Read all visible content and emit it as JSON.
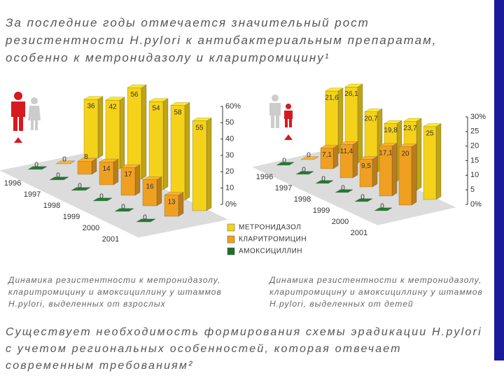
{
  "header": "За последние годы отмечается значительный рост резистентности H.pylori к антибактериальным препаратам, особенно к метронидазолу и кларитромицину¹",
  "chart_data": [
    {
      "type": "bar3d",
      "caption": "Динамика резистентности к метронидазолу, кларитромицину и амоксициллину у штаммов H.pylori, выделенных от взрослых",
      "categories": [
        "1996",
        "1997",
        "1998",
        "1999",
        "2000",
        "2001"
      ],
      "series": [
        {
          "name": "МЕТРОНИДАЗОЛ",
          "color": "#f5d21a",
          "values": [
            36,
            42,
            56,
            54,
            58,
            55
          ]
        },
        {
          "name": "КЛАРИТРОМИЦИН",
          "color": "#f0a020",
          "values": [
            0,
            8,
            14,
            17,
            16,
            13
          ]
        },
        {
          "name": "АМОКСИЦИЛЛИН",
          "color": "#1e6e2a",
          "values": [
            0,
            0,
            0,
            0,
            0,
            0
          ]
        }
      ],
      "ylim": [
        0,
        60
      ],
      "yticks": [
        {
          "value": 0,
          "label": "0%"
        },
        10,
        20,
        30,
        40,
        50,
        {
          "value": 60,
          "label": "60%"
        }
      ]
    },
    {
      "type": "bar3d",
      "caption": "Динамика резистентности к метронидазолу, кларитромицину и амоксициллину у штаммов H.pylori, выделенных от детей",
      "categories": [
        "1996",
        "1997",
        "1998",
        "1999",
        "2000",
        "2001"
      ],
      "series": [
        {
          "color": "#f5d21a",
          "values": [
            21.6,
            26.1,
            20.7,
            19.8,
            23.7,
            25
          ],
          "value_labels": [
            "21,6",
            "26,1",
            "20,7",
            "19,8",
            "23,7",
            "25"
          ]
        },
        {
          "color": "#f0a020",
          "values": [
            0,
            7.1,
            11.4,
            9.5,
            17.1,
            20
          ],
          "value_labels": [
            "0",
            "7,1",
            "11,4",
            "9,5",
            "17,1",
            "20"
          ]
        },
        {
          "color": "#1e6e2a",
          "values": [
            0,
            0,
            0,
            0,
            0,
            0
          ]
        }
      ],
      "ylim": [
        0,
        30
      ],
      "yticks": [
        {
          "value": 0,
          "label": "0%"
        },
        5,
        10,
        15,
        20,
        25,
        {
          "value": 30,
          "label": "30%"
        }
      ]
    }
  ],
  "footer": "Существует необходимость формирования схемы эрадикации H.pylori с учетом региональных особенностей, которая отвечает современным требованиям²"
}
